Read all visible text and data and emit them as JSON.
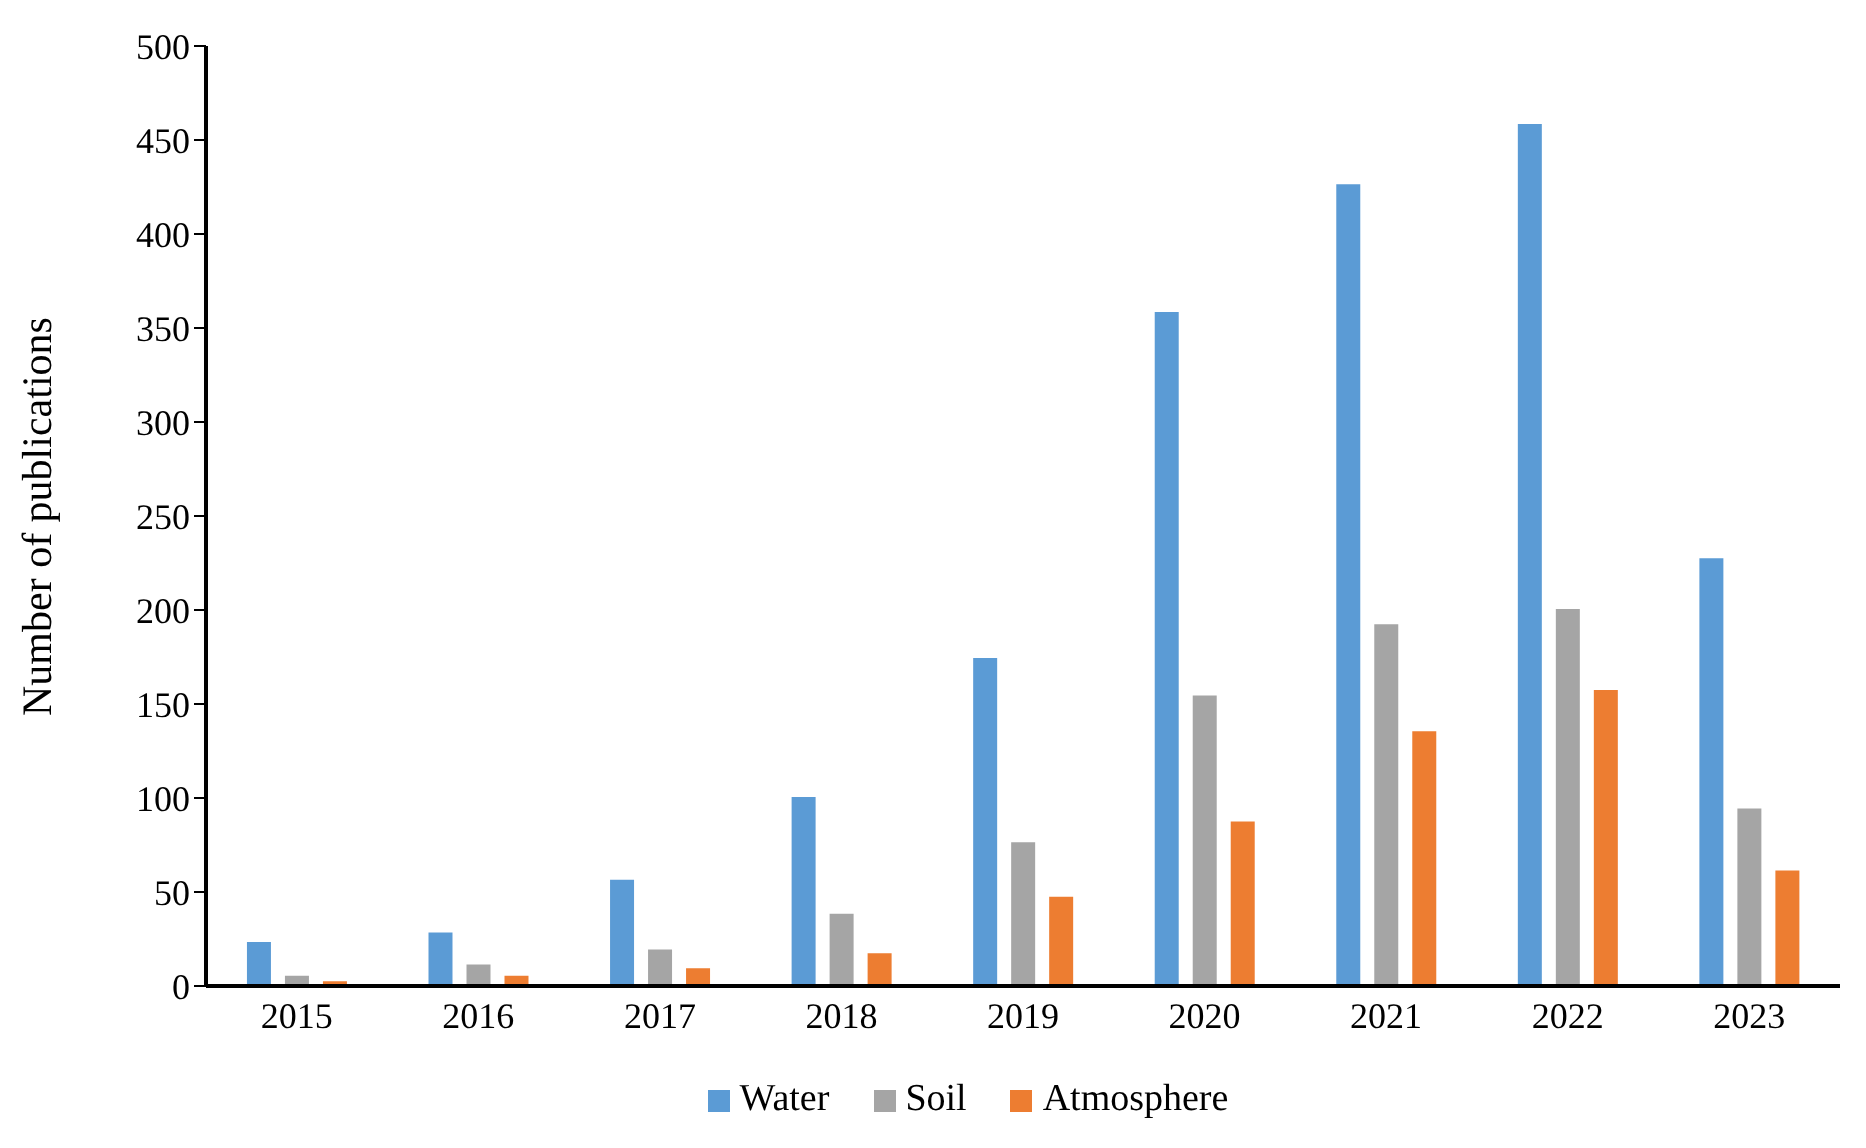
{
  "chart_data": {
    "type": "bar",
    "ylabel": "Number of publications",
    "categories": [
      "2015",
      "2016",
      "2017",
      "2018",
      "2019",
      "2020",
      "2021",
      "2022",
      "2023"
    ],
    "series": [
      {
        "name": "Water",
        "color": "#5b9bd5",
        "values": [
          24,
          29,
          57,
          101,
          175,
          359,
          427,
          459,
          228
        ]
      },
      {
        "name": "Soil",
        "color": "#a5a5a5",
        "values": [
          6,
          12,
          20,
          39,
          77,
          155,
          193,
          201,
          95
        ]
      },
      {
        "name": "Atmosphere",
        "color": "#ed7d31",
        "values": [
          3,
          6,
          10,
          18,
          48,
          88,
          136,
          158,
          62
        ]
      }
    ],
    "ylim": [
      0,
      500
    ],
    "yticks": [
      0,
      50,
      100,
      150,
      200,
      250,
      300,
      350,
      400,
      450,
      500
    ],
    "grid": false,
    "legend": "bottom"
  }
}
